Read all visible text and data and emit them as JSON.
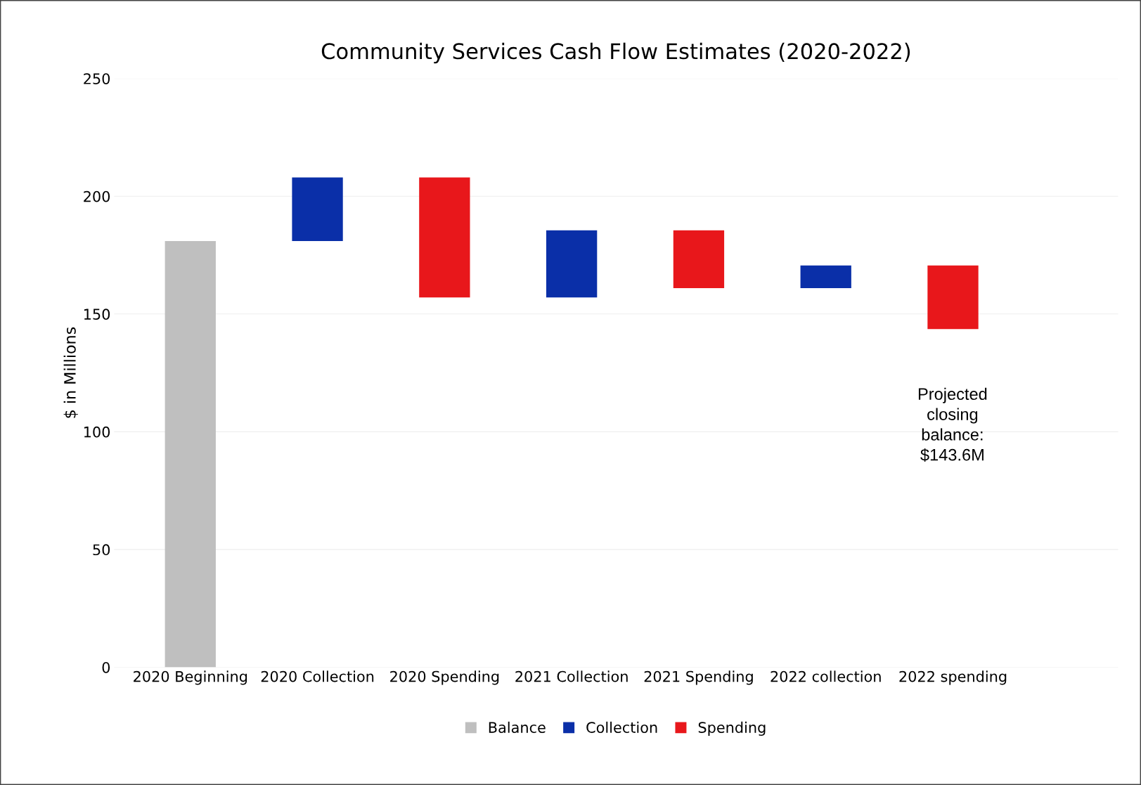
{
  "chart_data": {
    "type": "bar",
    "title": "Community Services Cash Flow Estimates (2020-2022)",
    "ylabel": "$ in Millions",
    "categories": [
      "2020 Beginning",
      "2020 Collection",
      "2020 Spending",
      "2021 Collection",
      "2021 Spending",
      "2022 collection",
      "2022 spending"
    ],
    "series": [
      {
        "name": "Balance",
        "color": "#bfbfbf",
        "base": [
          0,
          null,
          null,
          null,
          null,
          null,
          null
        ],
        "values": [
          181,
          null,
          null,
          null,
          null,
          null,
          null
        ]
      },
      {
        "name": "Collection",
        "color": "#0a2fa8",
        "base": [
          null,
          181,
          null,
          157,
          null,
          161,
          null
        ],
        "values": [
          null,
          27,
          null,
          28.5,
          null,
          9.6,
          null
        ]
      },
      {
        "name": "Spending",
        "color": "#e8171b",
        "base": [
          null,
          null,
          157,
          null,
          161,
          null,
          143.6
        ],
        "values": [
          null,
          null,
          51,
          null,
          24.5,
          null,
          27
        ]
      }
    ],
    "ylim": [
      0,
      250
    ],
    "yticks": [
      0,
      50,
      100,
      150,
      200,
      250
    ],
    "grid": "y",
    "legend": "bottom",
    "annotations": [
      "Projected closing balance: $143.6M"
    ]
  }
}
